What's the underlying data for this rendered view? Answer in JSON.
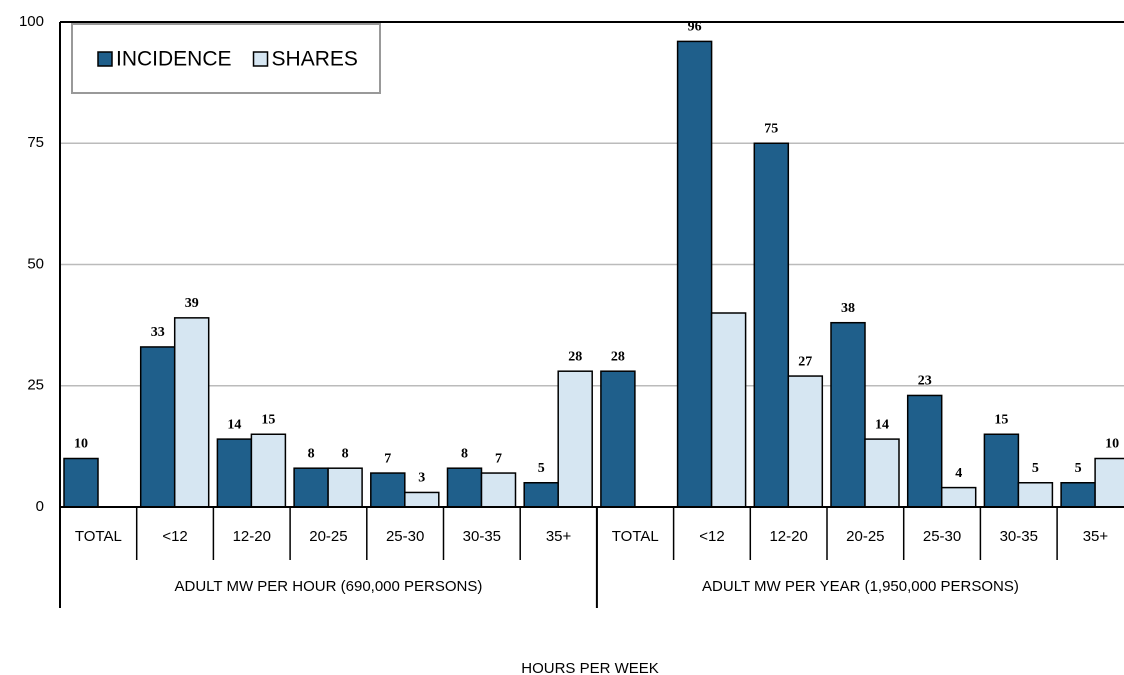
{
  "chart_data": {
    "type": "bar",
    "x_label": "HOURS PER WEEK",
    "categories": [
      "TOTAL",
      "<12",
      "12-20",
      "20-25",
      "25-30",
      "30-35",
      "35+",
      "TOTAL",
      "<12",
      "12-20",
      "20-25",
      "25-30",
      "30-35",
      "35+"
    ],
    "groups": [
      {
        "label": "ADULT MW PER HOUR (690,000 PERSONS)",
        "size": 7
      },
      {
        "label": "ADULT MW PER YEAR (1,950,000 PERSONS)",
        "size": 7
      }
    ],
    "series": [
      {
        "name": "INCIDENCE",
        "color": "#1f5f8b",
        "values": [
          10,
          33,
          14,
          8,
          7,
          8,
          5,
          28,
          96,
          75,
          38,
          23,
          15,
          5
        ]
      },
      {
        "name": "SHARES",
        "color": "#d6e6f2",
        "values": [
          null,
          39,
          15,
          8,
          3,
          7,
          28,
          null,
          40,
          27,
          14,
          4,
          5,
          10
        ],
        "value_labels": [
          null,
          "39",
          "15",
          "8",
          "3",
          "7",
          "28",
          null,
          null,
          "27",
          "14",
          "4",
          "5",
          "10"
        ]
      }
    ],
    "ylim": [
      0,
      100
    ],
    "yticks": [
      0,
      25,
      50,
      75,
      100
    ],
    "grid": true,
    "legend": "top-left"
  }
}
